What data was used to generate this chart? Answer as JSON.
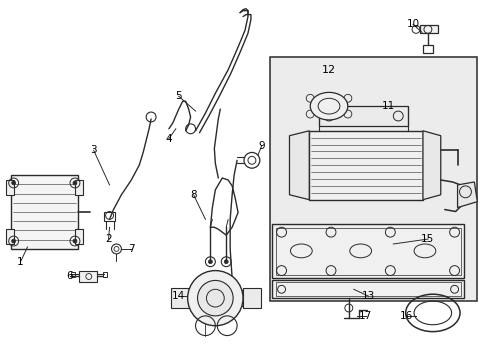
{
  "background_color": "#ffffff",
  "line_color": "#2a2a2a",
  "fig_width": 4.9,
  "fig_height": 3.6,
  "dpi": 100
}
